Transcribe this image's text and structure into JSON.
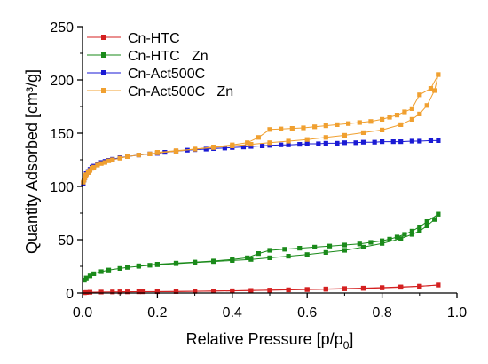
{
  "chart_data": {
    "type": "scatter",
    "title": "",
    "xlabel": "Relative Pressure [p/p",
    "xlabel_sub": "0",
    "xlabel_close": "]",
    "ylabel": "Quantity Adsorbed [cm³/g]",
    "xlim": [
      0.0,
      1.0
    ],
    "ylim": [
      0,
      250
    ],
    "xticks": [
      "0.0",
      "0.2",
      "0.4",
      "0.6",
      "0.8",
      "1.0"
    ],
    "yticks": [
      "0",
      "50",
      "100",
      "150",
      "200",
      "250"
    ],
    "grid": false,
    "legend_position": "top-left",
    "series": [
      {
        "name": "Cn-HTC",
        "color": "#d42020",
        "adsorption": [
          [
            0.005,
            0.3
          ],
          [
            0.01,
            0.5
          ],
          [
            0.02,
            0.7
          ],
          [
            0.05,
            0.9
          ],
          [
            0.08,
            1.0
          ],
          [
            0.12,
            1.1
          ],
          [
            0.16,
            1.2
          ],
          [
            0.2,
            1.3
          ],
          [
            0.25,
            1.4
          ],
          [
            0.3,
            1.6
          ],
          [
            0.35,
            1.8
          ],
          [
            0.4,
            2.0
          ],
          [
            0.45,
            2.3
          ],
          [
            0.5,
            2.6
          ],
          [
            0.55,
            2.9
          ],
          [
            0.6,
            3.2
          ],
          [
            0.65,
            3.5
          ],
          [
            0.7,
            3.9
          ],
          [
            0.75,
            4.3
          ],
          [
            0.8,
            4.8
          ],
          [
            0.85,
            5.4
          ],
          [
            0.9,
            6.2
          ],
          [
            0.95,
            7.5
          ]
        ],
        "desorption": [
          [
            0.95,
            7.5
          ],
          [
            0.9,
            6.4
          ],
          [
            0.85,
            5.7
          ],
          [
            0.8,
            5.1
          ],
          [
            0.75,
            4.6
          ],
          [
            0.7,
            4.2
          ],
          [
            0.65,
            3.8
          ],
          [
            0.6,
            3.4
          ],
          [
            0.55,
            3.0
          ],
          [
            0.5,
            2.7
          ],
          [
            0.45,
            2.4
          ],
          [
            0.4,
            2.1
          ],
          [
            0.35,
            1.9
          ],
          [
            0.3,
            1.7
          ],
          [
            0.25,
            1.5
          ],
          [
            0.2,
            1.4
          ],
          [
            0.15,
            1.2
          ],
          [
            0.1,
            1.1
          ]
        ]
      },
      {
        "name": "Cn-HTC   Zn",
        "color": "#1a8a1a",
        "adsorption": [
          [
            0.005,
            12
          ],
          [
            0.01,
            14
          ],
          [
            0.02,
            16
          ],
          [
            0.03,
            18
          ],
          [
            0.05,
            20
          ],
          [
            0.07,
            21.5
          ],
          [
            0.1,
            23
          ],
          [
            0.12,
            24
          ],
          [
            0.15,
            25
          ],
          [
            0.18,
            26
          ],
          [
            0.2,
            26.5
          ],
          [
            0.25,
            27.5
          ],
          [
            0.3,
            28.5
          ],
          [
            0.35,
            29.5
          ],
          [
            0.4,
            30.5
          ],
          [
            0.45,
            31.5
          ],
          [
            0.5,
            33
          ],
          [
            0.55,
            34.5
          ],
          [
            0.6,
            36
          ],
          [
            0.65,
            38
          ],
          [
            0.7,
            40
          ],
          [
            0.75,
            43
          ],
          [
            0.8,
            46.5
          ],
          [
            0.85,
            51
          ],
          [
            0.88,
            55
          ],
          [
            0.9,
            58
          ],
          [
            0.92,
            63
          ],
          [
            0.94,
            69
          ],
          [
            0.95,
            74
          ]
        ],
        "desorption": [
          [
            0.95,
            74
          ],
          [
            0.92,
            67
          ],
          [
            0.9,
            62
          ],
          [
            0.88,
            58
          ],
          [
            0.86,
            55
          ],
          [
            0.84,
            52.5
          ],
          [
            0.82,
            50.5
          ],
          [
            0.8,
            49
          ],
          [
            0.77,
            47.5
          ],
          [
            0.74,
            46
          ],
          [
            0.7,
            45
          ],
          [
            0.66,
            44
          ],
          [
            0.62,
            43
          ],
          [
            0.58,
            42
          ],
          [
            0.54,
            41
          ],
          [
            0.5,
            40
          ],
          [
            0.47,
            37
          ],
          [
            0.44,
            33
          ],
          [
            0.4,
            31.5
          ],
          [
            0.35,
            30
          ],
          [
            0.3,
            29
          ],
          [
            0.25,
            28
          ],
          [
            0.2,
            27
          ],
          [
            0.15,
            25.5
          ]
        ]
      },
      {
        "name": "Cn-Act500C",
        "color": "#1a1ad4",
        "adsorption": [
          [
            0.002,
            103
          ],
          [
            0.004,
            106
          ],
          [
            0.006,
            108
          ],
          [
            0.008,
            110
          ],
          [
            0.01,
            112
          ],
          [
            0.015,
            114
          ],
          [
            0.02,
            116
          ],
          [
            0.025,
            118
          ],
          [
            0.03,
            119
          ],
          [
            0.04,
            121
          ],
          [
            0.05,
            122.5
          ],
          [
            0.06,
            123.5
          ],
          [
            0.07,
            124.5
          ],
          [
            0.08,
            125.5
          ],
          [
            0.1,
            127
          ],
          [
            0.12,
            128
          ],
          [
            0.15,
            129.5
          ],
          [
            0.18,
            130.5
          ],
          [
            0.2,
            131
          ],
          [
            0.22,
            132
          ],
          [
            0.25,
            133
          ],
          [
            0.28,
            134
          ],
          [
            0.3,
            134.5
          ],
          [
            0.33,
            135
          ],
          [
            0.35,
            135.5
          ],
          [
            0.38,
            136
          ],
          [
            0.4,
            136.5
          ],
          [
            0.43,
            137
          ],
          [
            0.45,
            137.5
          ],
          [
            0.48,
            138
          ],
          [
            0.5,
            138.5
          ],
          [
            0.53,
            139
          ],
          [
            0.55,
            139
          ],
          [
            0.58,
            139.5
          ],
          [
            0.6,
            140
          ],
          [
            0.63,
            140
          ],
          [
            0.65,
            140.5
          ],
          [
            0.68,
            140.5
          ],
          [
            0.7,
            141
          ],
          [
            0.73,
            141
          ],
          [
            0.75,
            141.5
          ],
          [
            0.78,
            141.5
          ],
          [
            0.8,
            142
          ],
          [
            0.83,
            142
          ],
          [
            0.85,
            142
          ],
          [
            0.88,
            142.5
          ],
          [
            0.9,
            142.5
          ],
          [
            0.93,
            143
          ],
          [
            0.95,
            143
          ]
        ],
        "desorption": []
      },
      {
        "name": "Cn-Act500C   Zn",
        "color": "#f0a030",
        "adsorption": [
          [
            0.002,
            104
          ],
          [
            0.004,
            106
          ],
          [
            0.006,
            108
          ],
          [
            0.008,
            110
          ],
          [
            0.01,
            111
          ],
          [
            0.015,
            113
          ],
          [
            0.02,
            115
          ],
          [
            0.025,
            117
          ],
          [
            0.03,
            118
          ],
          [
            0.04,
            120
          ],
          [
            0.05,
            121.5
          ],
          [
            0.06,
            122.5
          ],
          [
            0.07,
            124
          ],
          [
            0.08,
            125
          ],
          [
            0.1,
            126.5
          ],
          [
            0.12,
            128
          ],
          [
            0.15,
            129.5
          ],
          [
            0.18,
            130.5
          ],
          [
            0.2,
            131.5
          ],
          [
            0.25,
            133
          ],
          [
            0.3,
            135
          ],
          [
            0.35,
            136.5
          ],
          [
            0.4,
            138
          ],
          [
            0.45,
            139.5
          ],
          [
            0.5,
            141
          ],
          [
            0.55,
            142.5
          ],
          [
            0.6,
            144
          ],
          [
            0.65,
            146
          ],
          [
            0.7,
            148
          ],
          [
            0.75,
            150.5
          ],
          [
            0.8,
            153
          ],
          [
            0.85,
            158
          ],
          [
            0.88,
            163
          ],
          [
            0.9,
            168
          ],
          [
            0.92,
            176
          ],
          [
            0.94,
            190
          ],
          [
            0.95,
            205
          ]
        ],
        "desorption": [
          [
            0.95,
            205
          ],
          [
            0.93,
            192
          ],
          [
            0.9,
            186
          ],
          [
            0.88,
            173
          ],
          [
            0.86,
            170
          ],
          [
            0.84,
            167
          ],
          [
            0.82,
            165
          ],
          [
            0.8,
            163
          ],
          [
            0.77,
            161
          ],
          [
            0.74,
            160
          ],
          [
            0.71,
            159
          ],
          [
            0.68,
            158
          ],
          [
            0.65,
            157
          ],
          [
            0.62,
            156
          ],
          [
            0.59,
            155
          ],
          [
            0.56,
            154.5
          ],
          [
            0.53,
            154
          ],
          [
            0.5,
            153.5
          ],
          [
            0.47,
            146
          ],
          [
            0.44,
            141
          ],
          [
            0.4,
            139
          ],
          [
            0.35,
            137
          ],
          [
            0.3,
            135
          ],
          [
            0.25,
            133.5
          ],
          [
            0.2,
            132
          ]
        ]
      }
    ]
  }
}
